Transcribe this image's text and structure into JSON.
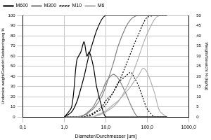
{
  "chart_data": {
    "type": "line",
    "x_label": "Diameter/Durchmesser [um]",
    "y_label": "Undersize weight/Gewicht Siebdurchgang %",
    "y2_label": "Weight/Gewicht % [kg/kg]",
    "log": "x",
    "grid": true,
    "legend": "top-left",
    "xlim": [
      0.1,
      1000
    ],
    "xticks": [
      {
        "value": 0.1,
        "label": "0,1"
      },
      {
        "value": 1,
        "label": "1,0"
      },
      {
        "value": 10,
        "label": "10,0"
      },
      {
        "value": 100,
        "label": "100,0"
      },
      {
        "value": 1000,
        "label": "1000,0"
      }
    ],
    "ylim": [
      0,
      100
    ],
    "yticks": [
      0,
      10,
      20,
      30,
      40,
      50,
      60,
      70,
      80,
      90,
      100
    ],
    "y2lim": [
      0,
      50
    ],
    "y2ticks": [
      0,
      5,
      10,
      15,
      20,
      25,
      30,
      35,
      40,
      45,
      50
    ],
    "x": [
      1,
      1.5,
      2,
      2.5,
      3,
      3.5,
      4,
      5,
      6,
      8,
      10,
      15,
      20,
      30,
      40,
      50,
      60,
      80,
      100,
      150,
      200,
      300
    ],
    "series": [
      {
        "name": "M600",
        "color": "#000000",
        "line_style": "solid",
        "values": [
          0,
          5,
          15,
          28,
          40,
          52,
          62,
          75,
          85,
          96,
          100,
          100,
          100,
          100,
          100,
          100,
          100,
          100,
          100,
          100,
          100,
          100
        ]
      },
      {
        "name": "M300",
        "color": "#808080",
        "line_style": "solid",
        "values": [
          0,
          0,
          0,
          1,
          2,
          3,
          5,
          8,
          12,
          20,
          30,
          52,
          70,
          88,
          96,
          99,
          100,
          100,
          100,
          100,
          100,
          100
        ]
      },
      {
        "name": "M10",
        "color": "#000000",
        "line_style": "dotted",
        "values": [
          0,
          0,
          0,
          0,
          0,
          1,
          1,
          3,
          5,
          8,
          12,
          24,
          33,
          50,
          63,
          73,
          80,
          92,
          98,
          100,
          100,
          100
        ]
      },
      {
        "name": "M6",
        "color": "#b0b0b0",
        "line_style": "solid",
        "values": [
          0,
          0,
          0,
          0,
          0,
          0,
          0,
          0,
          1,
          3,
          5,
          10,
          15,
          27,
          38,
          48,
          57,
          72,
          82,
          96,
          100,
          100
        ]
      },
      {
        "name": "M600",
        "color": "#000000",
        "line_style": "solid",
        "axis": "y2",
        "values": [
          0,
          5,
          28,
          32,
          37,
          30,
          32,
          25,
          15,
          5,
          0,
          0,
          0,
          0,
          0,
          0,
          0,
          0,
          0,
          0,
          0,
          0
        ]
      },
      {
        "name": "M300",
        "color": "#808080",
        "line_style": "solid",
        "axis": "y2",
        "values": [
          0,
          0,
          0,
          0,
          1,
          2,
          3,
          5,
          8,
          12,
          17,
          21,
          19,
          12,
          6,
          2,
          0,
          0,
          0,
          0,
          0,
          0
        ]
      },
      {
        "name": "M10",
        "color": "#000000",
        "line_style": "dotted",
        "axis": "y2",
        "values": [
          0,
          0,
          0,
          0,
          0,
          1,
          1,
          2,
          3,
          5,
          8,
          12,
          17,
          20,
          22,
          19,
          16,
          9,
          4,
          0,
          0,
          0
        ]
      },
      {
        "name": "M6",
        "color": "#b0b0b0",
        "line_style": "solid",
        "axis": "y2",
        "values": [
          0,
          0,
          0,
          0,
          0,
          0,
          0,
          0,
          1,
          2,
          3,
          6,
          8,
          12,
          15,
          18,
          20,
          24,
          22,
          12,
          3,
          0
        ]
      }
    ]
  }
}
